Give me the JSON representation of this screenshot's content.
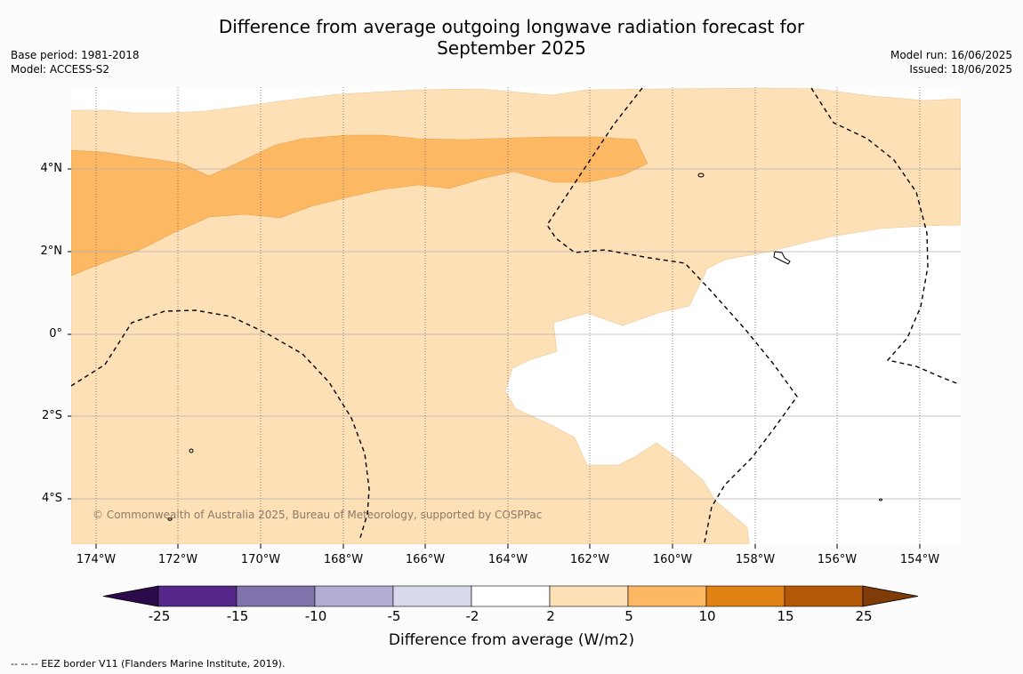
{
  "title_line1": "Difference from average outgoing longwave radiation forecast for",
  "title_line2": "September 2025",
  "meta_left": {
    "base_period": "Base period: 1981-2018",
    "model": "Model: ACCESS-S2"
  },
  "meta_right": {
    "model_run": "Model run: 16/06/2025",
    "issued": "Issued: 18/06/2025"
  },
  "lat_labels": [
    "4°N",
    "2°N",
    "0°",
    "2°S",
    "4°S"
  ],
  "lon_labels": [
    "174°W",
    "172°W",
    "170°W",
    "168°W",
    "166°W",
    "164°W",
    "162°W",
    "160°W",
    "158°W",
    "156°W",
    "154°W"
  ],
  "copyright": "© Commonwealth of Australia 2025, Bureau of Meteorology, supported by COSPPac",
  "colorbar": {
    "ticks": [
      "-25",
      "-15",
      "-10",
      "-5",
      "-2",
      "2",
      "5",
      "10",
      "15",
      "25"
    ],
    "colors": [
      "#2d0a4a",
      "#542788",
      "#8073ac",
      "#b2abd2",
      "#d8daeb",
      "#ffffff",
      "#fee0b6",
      "#fdb863",
      "#e08214",
      "#b35806",
      "#7f3b08"
    ],
    "label": "Difference from average (W/m2)"
  },
  "legend_footer": "--  --  -- EEZ border V11 (Flanders Marine Institute, 2019)."
}
